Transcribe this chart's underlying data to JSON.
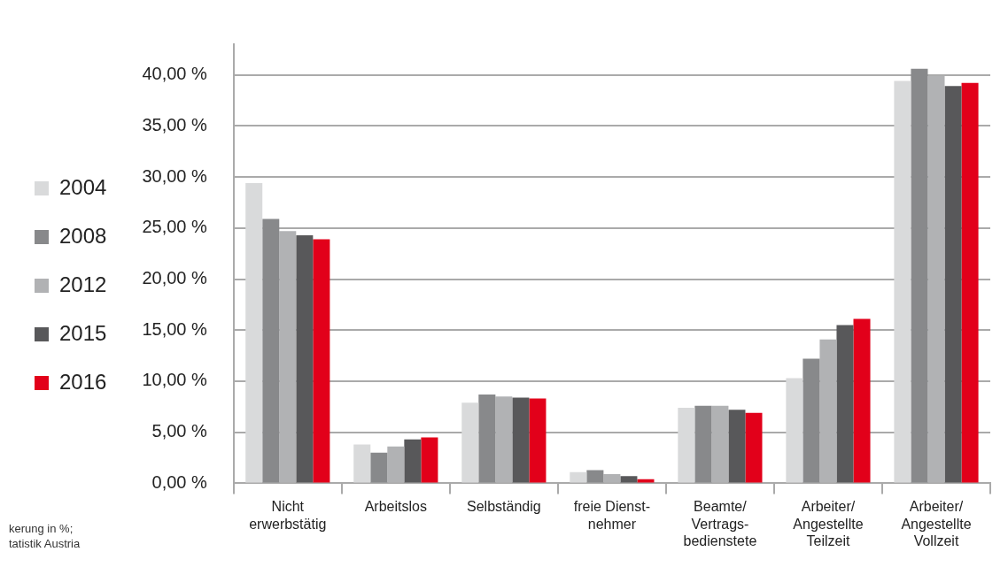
{
  "chart_data": {
    "type": "bar",
    "categories": [
      "Nicht\nerwerbstätig",
      "Arbeitslos",
      "Selbständig",
      "freie Dienst-\nnehmer",
      "Beamte/\nVertrags-\nbedienstete",
      "Arbeiter/\nAngestellte\nTeilzeit",
      "Arbeiter/\nAngestellte\nVollzeit"
    ],
    "series": [
      {
        "name": "2004",
        "color": "#d9dadb",
        "values": [
          29.4,
          3.8,
          7.9,
          1.1,
          7.4,
          10.3,
          39.4
        ]
      },
      {
        "name": "2008",
        "color": "#88898b",
        "values": [
          25.9,
          3.0,
          8.7,
          1.3,
          7.6,
          12.2,
          40.6
        ]
      },
      {
        "name": "2012",
        "color": "#b1b2b4",
        "values": [
          24.7,
          3.6,
          8.5,
          0.9,
          7.6,
          14.1,
          39.9
        ]
      },
      {
        "name": "2015",
        "color": "#58585a",
        "values": [
          24.3,
          4.3,
          8.4,
          0.7,
          7.2,
          15.5,
          38.9
        ]
      },
      {
        "name": "2016",
        "color": "#e2001a",
        "values": [
          23.9,
          4.5,
          8.3,
          0.4,
          6.9,
          16.1,
          39.2
        ]
      }
    ],
    "ylim": [
      0,
      43
    ],
    "yticks": [
      {
        "value": 0,
        "label": "0,00 %"
      },
      {
        "value": 5,
        "label": "5,00 %"
      },
      {
        "value": 10,
        "label": "10,00 %"
      },
      {
        "value": 15,
        "label": "15,00 %"
      },
      {
        "value": 20,
        "label": "20,00 %"
      },
      {
        "value": 25,
        "label": "25,00 %"
      },
      {
        "value": 30,
        "label": "30,00 %"
      },
      {
        "value": 35,
        "label": "35,00 %"
      },
      {
        "value": 40,
        "label": "40,00 %"
      }
    ],
    "grid": "y",
    "legend": "left",
    "annotations": [
      "kerung in %;",
      "tatistik Austria"
    ]
  }
}
